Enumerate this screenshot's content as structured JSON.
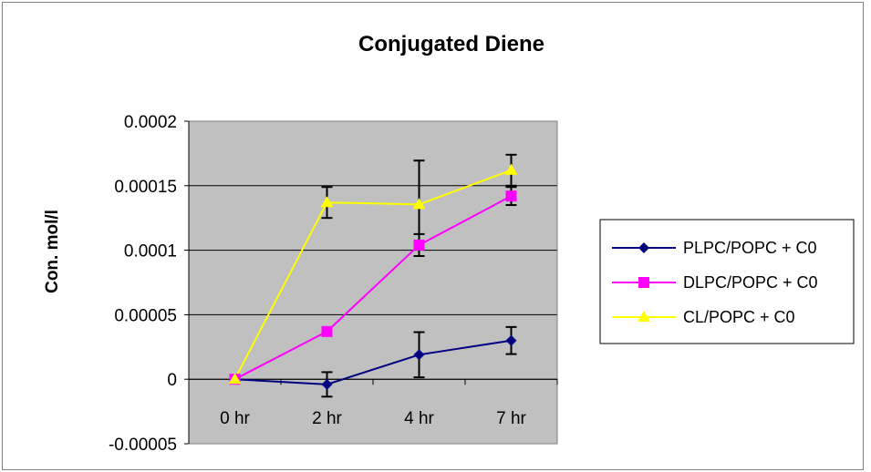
{
  "chart_data": {
    "type": "line",
    "title": "Conjugated Diene",
    "xlabel": "",
    "ylabel": "Con. mol/l",
    "categories": [
      "0 hr",
      "2 hr",
      "4 hr",
      "7 hr"
    ],
    "ylim": [
      -5e-05,
      0.0002
    ],
    "yticks": [
      -5e-05,
      0,
      5e-05,
      0.0001,
      0.00015,
      0.0002
    ],
    "ytick_labels": [
      "-0.00005",
      "0",
      "0.00005",
      "0.0001",
      "0.00015",
      "0.0002"
    ],
    "grid": true,
    "plot_background": "#c0c0c0",
    "legend_position": "right",
    "series": [
      {
        "name": "PLPC/POPC + C0",
        "color": "#000080",
        "marker": "diamond",
        "values": [
          0,
          -4e-06,
          1.9e-05,
          3e-05
        ],
        "errors": [
          0,
          9.5e-06,
          1.75e-05,
          1.05e-05
        ]
      },
      {
        "name": "DLPC/POPC + C0",
        "color": "#ff00ff",
        "marker": "square",
        "values": [
          0,
          3.7e-05,
          0.000104,
          0.000142
        ],
        "errors": [
          0,
          2e-06,
          8.5e-06,
          7e-06
        ]
      },
      {
        "name": "CL/POPC + C0",
        "color": "#ffff00",
        "marker": "triangle",
        "values": [
          0,
          0.000137,
          0.0001355,
          0.000162
        ],
        "errors": [
          0,
          1.2e-05,
          3.4e-05,
          1.2e-05
        ]
      }
    ]
  }
}
